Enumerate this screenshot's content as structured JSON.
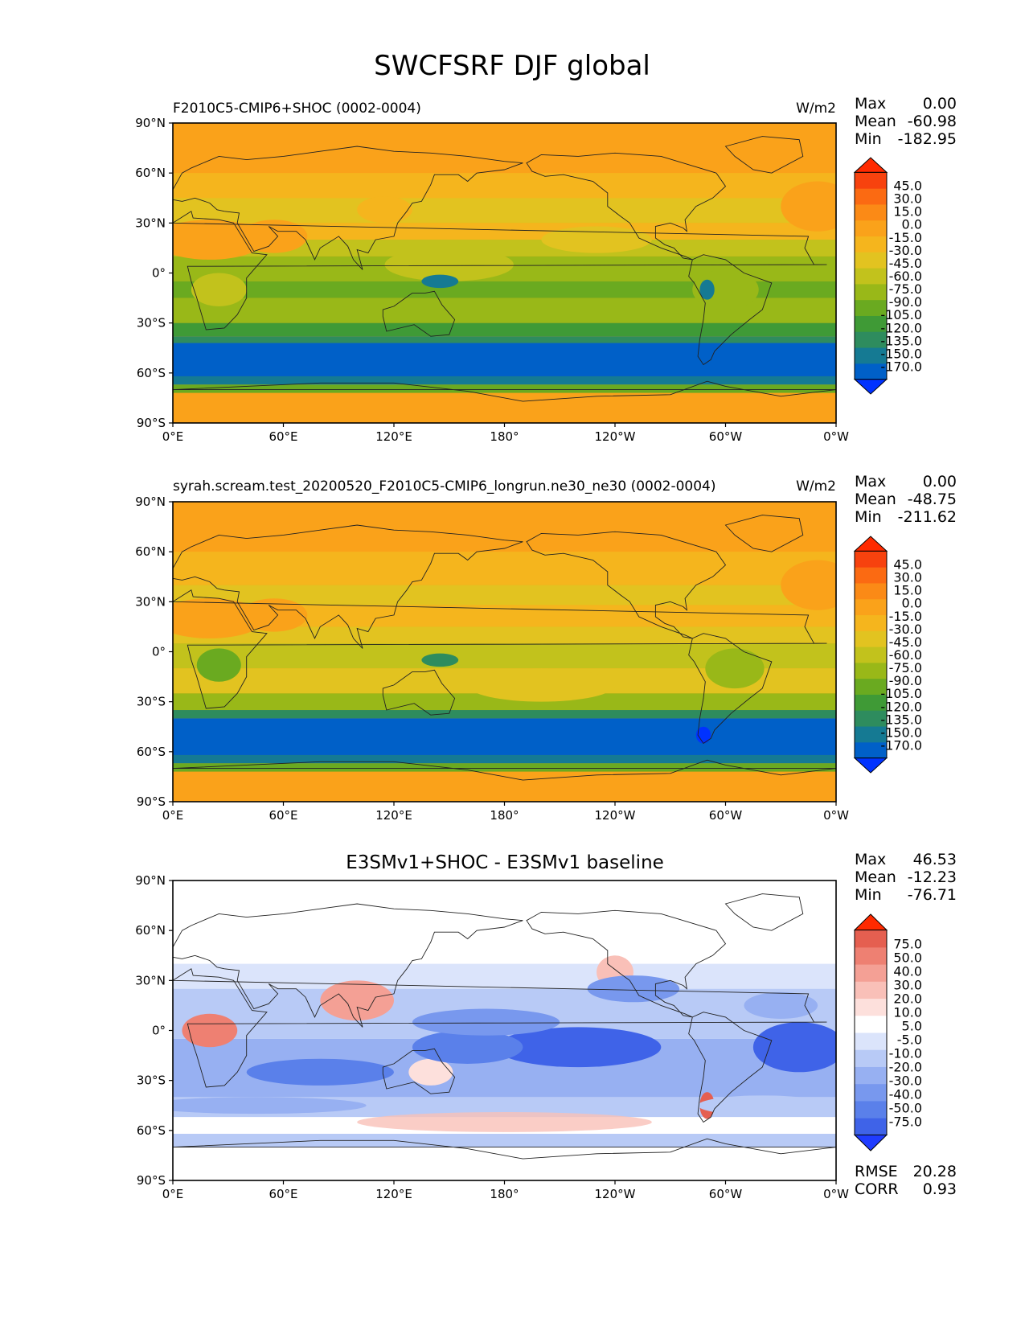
{
  "figure": {
    "title": "SWCFSRF DJF global"
  },
  "colors": {
    "abs_levels": [
      "#0032ff",
      "#0060c8",
      "#157a93",
      "#2e8c5e",
      "#3f9a36",
      "#6aaa20",
      "#99b818",
      "#c2c21c",
      "#e2c320",
      "#f5b51d",
      "#faa21a",
      "#fb8a16",
      "#fb6a12",
      "#f7420e",
      "#ff2a00"
    ],
    "diff_levels": [
      "#1f3cff",
      "#3f63e8",
      "#5a80ea",
      "#7898ee",
      "#97b0f2",
      "#b8caf6",
      "#dbe4fb",
      "#ffffff",
      "#ffffff",
      "#fde0dc",
      "#f9c0b8",
      "#f4a095",
      "#ee8072",
      "#e55f50",
      "#ff2a00"
    ],
    "coastline": "#222222",
    "frame": "#000000"
  },
  "axes": {
    "x_ticks": [
      "0°E",
      "60°E",
      "120°E",
      "180°",
      "120°W",
      "60°W",
      "0°W"
    ],
    "y_ticks": [
      "90°N",
      "60°N",
      "30°N",
      "0°",
      "30°S",
      "60°S",
      "90°S"
    ]
  },
  "chart_data": [
    {
      "type": "heatmap",
      "panel": "test",
      "title_left": "F2010C5-CMIP6+SHOC (0002-0004)",
      "units": "W/m2",
      "stats": {
        "max_label": "Max",
        "max": "0.00",
        "mean_label": "Mean",
        "mean": "-60.98",
        "min_label": "Min",
        "min": "-182.95"
      },
      "colorbar_ticks": [
        "45.0",
        "30.0",
        "15.0",
        "0.0",
        "-15.0",
        "-30.0",
        "-45.0",
        "-60.0",
        "-75.0",
        "-90.0",
        "-105.0",
        "-120.0",
        "-135.0",
        "-150.0",
        "-170.0"
      ],
      "xlim": [
        0,
        360
      ],
      "ylim": [
        -90,
        90
      ]
    },
    {
      "type": "heatmap",
      "panel": "reference",
      "title_left": "syrah.scream.test_20200520_F2010C5-CMIP6_longrun.ne30_ne30 (0002-0004)",
      "units": "W/m2",
      "stats": {
        "max_label": "Max",
        "max": "0.00",
        "mean_label": "Mean",
        "mean": "-48.75",
        "min_label": "Min",
        "min": "-211.62"
      },
      "colorbar_ticks": [
        "45.0",
        "30.0",
        "15.0",
        "0.0",
        "-15.0",
        "-30.0",
        "-45.0",
        "-60.0",
        "-75.0",
        "-90.0",
        "-105.0",
        "-120.0",
        "-135.0",
        "-150.0",
        "-170.0"
      ],
      "xlim": [
        0,
        360
      ],
      "ylim": [
        -90,
        90
      ]
    },
    {
      "type": "heatmap",
      "panel": "difference",
      "title_center": "E3SMv1+SHOC - E3SMv1 baseline",
      "stats": {
        "max_label": "Max",
        "max": "46.53",
        "mean_label": "Mean",
        "mean": "-12.23",
        "min_label": "Min",
        "min": "-76.71"
      },
      "colorbar_ticks": [
        "75.0",
        "50.0",
        "40.0",
        "30.0",
        "20.0",
        "10.0",
        "5.0",
        "-5.0",
        "-10.0",
        "-20.0",
        "-30.0",
        "-40.0",
        "-50.0",
        "-75.0"
      ],
      "error_stats": {
        "rmse_label": "RMSE",
        "rmse": "20.28",
        "corr_label": "CORR",
        "corr": "0.93"
      },
      "xlim": [
        0,
        360
      ],
      "ylim": [
        -90,
        90
      ]
    }
  ]
}
